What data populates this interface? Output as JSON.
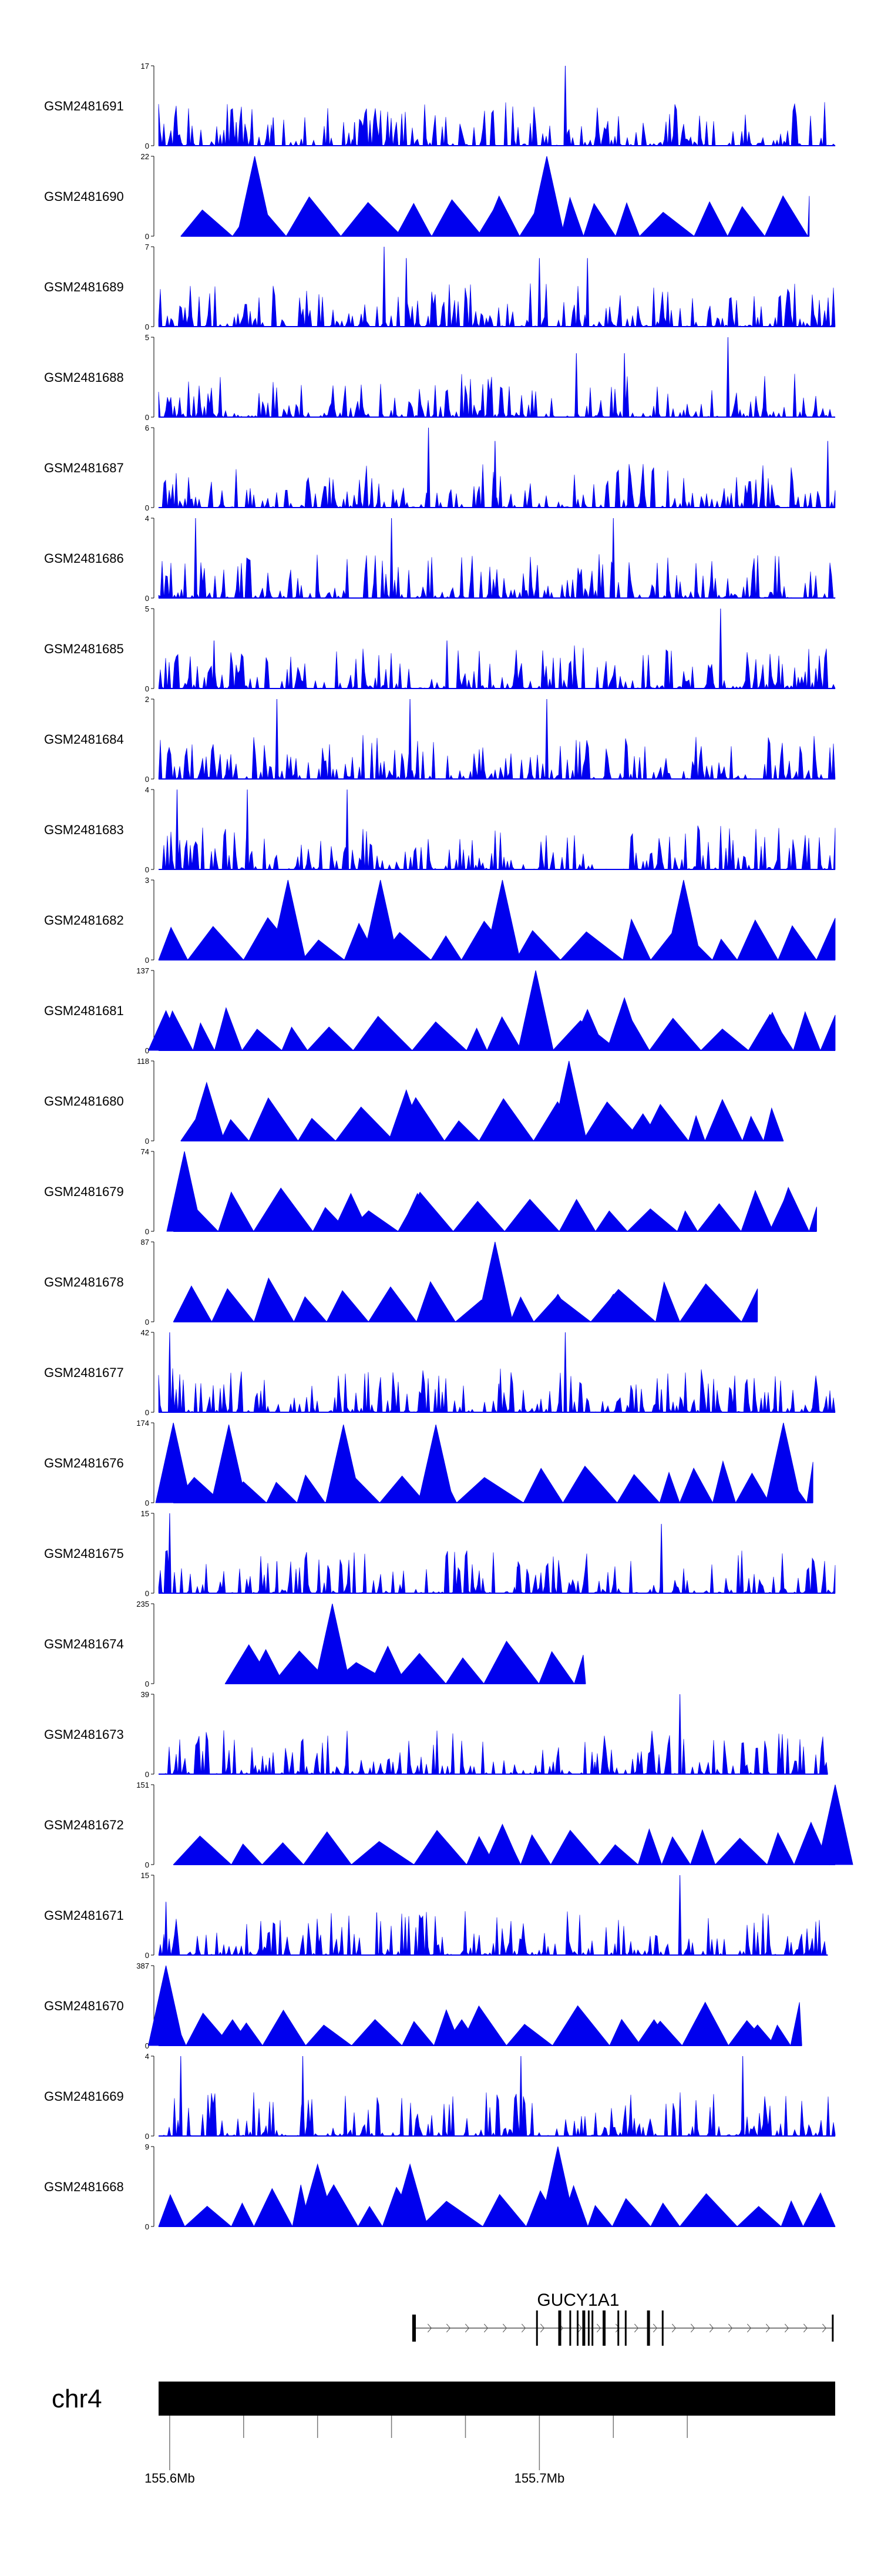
{
  "colors": {
    "signal": "#0000ee",
    "axis": "#000000",
    "label": "#000000",
    "gene": "#000000",
    "chrom": "#000000"
  },
  "chart_data": {
    "type": "area",
    "description_free": true,
    "region": {
      "chromosome": "chr4",
      "start_mb": 155.597,
      "end_mb": 155.78
    },
    "axis_ticks": [
      {
        "value": 155.6,
        "label": "155.6Mb"
      },
      {
        "value": 155.62
      },
      {
        "value": 155.64
      },
      {
        "value": 155.66
      },
      {
        "value": 155.68
      },
      {
        "value": 155.7,
        "label": "155.7Mb"
      },
      {
        "value": 155.72
      },
      {
        "value": 155.74
      }
    ],
    "gene": {
      "name": "GUCY1A1",
      "start_mb": 155.666,
      "end_mb": 155.7795,
      "exons_mb": [
        155.666,
        155.6665,
        155.6995,
        155.7055,
        155.7085,
        155.7105,
        155.712,
        155.7135,
        155.7145,
        155.7175,
        155.7215,
        155.7235,
        155.7295,
        155.7335,
        155.7795
      ]
    },
    "tracks": [
      {
        "name": "GSM2481691",
        "ymax": 17,
        "style": "dense",
        "peaks": [
          [
            155.707,
            17
          ],
          [
            155.628,
            6
          ],
          [
            155.618,
            5
          ],
          [
            155.65,
            5
          ]
        ],
        "extent": [
          155.597,
          155.78
        ]
      },
      {
        "name": "GSM2481690",
        "ymax": 22,
        "style": "tri",
        "peaks": [
          [
            155.623,
            22
          ],
          [
            155.702,
            22
          ],
          [
            155.666,
            9
          ],
          [
            155.688,
            8
          ]
        ],
        "extent": [
          155.603,
          155.773
        ]
      },
      {
        "name": "GSM2481689",
        "ymax": 7,
        "style": "dense",
        "peaks": [
          [
            155.658,
            7
          ],
          [
            155.664,
            6
          ],
          [
            155.713,
            6
          ],
          [
            155.7,
            6
          ]
        ],
        "extent": [
          155.597,
          155.78
        ]
      },
      {
        "name": "GSM2481688",
        "ymax": 5,
        "style": "dense",
        "peaks": [
          [
            155.751,
            5
          ],
          [
            155.71,
            4
          ],
          [
            155.723,
            4
          ]
        ],
        "extent": [
          155.597,
          155.78
        ]
      },
      {
        "name": "GSM2481687",
        "ymax": 6,
        "style": "dense",
        "peaks": [
          [
            155.67,
            6
          ],
          [
            155.688,
            5
          ],
          [
            155.778,
            5
          ]
        ],
        "extent": [
          155.597,
          155.78
        ]
      },
      {
        "name": "GSM2481686",
        "ymax": 4,
        "style": "dense",
        "peaks": [
          [
            155.607,
            4
          ],
          [
            155.66,
            4
          ],
          [
            155.72,
            4
          ]
        ],
        "extent": [
          155.597,
          155.78
        ]
      },
      {
        "name": "GSM2481685",
        "ymax": 5,
        "style": "dense",
        "peaks": [
          [
            155.749,
            5
          ],
          [
            155.612,
            3
          ],
          [
            155.675,
            3
          ]
        ],
        "extent": [
          155.597,
          155.78
        ]
      },
      {
        "name": "GSM2481684",
        "ymax": 2,
        "style": "dense",
        "peaks": [
          [
            155.629,
            2
          ],
          [
            155.665,
            2
          ],
          [
            155.702,
            2
          ]
        ],
        "extent": [
          155.597,
          155.78
        ]
      },
      {
        "name": "GSM2481683",
        "ymax": 4,
        "style": "dense",
        "peaks": [
          [
            155.602,
            4
          ],
          [
            155.621,
            4
          ],
          [
            155.648,
            4
          ]
        ],
        "extent": [
          155.597,
          155.78
        ]
      },
      {
        "name": "GSM2481682",
        "ymax": 3,
        "style": "tri",
        "peaks": [
          [
            155.632,
            3
          ],
          [
            155.657,
            3
          ],
          [
            155.69,
            3
          ],
          [
            155.739,
            3
          ]
        ],
        "extent": [
          155.597,
          155.78
        ]
      },
      {
        "name": "GSM2481681",
        "ymax": 137,
        "style": "tri",
        "peaks": [
          [
            155.599,
            68
          ],
          [
            155.65,
            0
          ],
          [
            155.699,
            137
          ],
          [
            155.713,
            70
          ],
          [
            155.723,
            90
          ],
          [
            155.763,
            65
          ]
        ],
        "extent": [
          155.597,
          155.78
        ]
      },
      {
        "name": "GSM2481680",
        "ymax": 118,
        "style": "tri",
        "peaks": [
          [
            155.61,
            86
          ],
          [
            155.664,
            75
          ],
          [
            155.708,
            118
          ],
          [
            155.728,
            40
          ]
        ],
        "extent": [
          155.603,
          155.766
        ]
      },
      {
        "name": "GSM2481679",
        "ymax": 74,
        "style": "tri",
        "peaks": [
          [
            155.604,
            74
          ],
          [
            155.649,
            35
          ],
          [
            155.667,
            35
          ],
          [
            155.767,
            35
          ]
        ],
        "extent": [
          155.601,
          155.775
        ]
      },
      {
        "name": "GSM2481678",
        "ymax": 87,
        "style": "tri",
        "peaks": [
          [
            155.688,
            87
          ],
          [
            155.705,
            30
          ],
          [
            155.72,
            30
          ]
        ],
        "extent": [
          155.601,
          155.759
        ]
      },
      {
        "name": "GSM2481677",
        "ymax": 42,
        "style": "dense",
        "peaks": [
          [
            155.6,
            42
          ],
          [
            155.707,
            42
          ],
          [
            155.689,
            15
          ],
          [
            155.733,
            12
          ]
        ],
        "extent": [
          155.597,
          155.78
        ]
      },
      {
        "name": "GSM2481676",
        "ymax": 174,
        "style": "tri",
        "peaks": [
          [
            155.601,
            174
          ],
          [
            155.616,
            170
          ],
          [
            155.647,
            170
          ],
          [
            155.672,
            170
          ],
          [
            155.766,
            174
          ]
        ],
        "extent": [
          155.601,
          155.774
        ]
      },
      {
        "name": "GSM2481675",
        "ymax": 15,
        "style": "dense",
        "peaks": [
          [
            155.6,
            15
          ],
          [
            155.733,
            13
          ],
          [
            155.629,
            6
          ],
          [
            155.694,
            5
          ]
        ],
        "extent": [
          155.597,
          155.78
        ]
      },
      {
        "name": "GSM2481674",
        "ymax": 235,
        "style": "tri",
        "peaks": [
          [
            155.626,
            100
          ],
          [
            155.644,
            235
          ],
          [
            155.659,
            110
          ]
        ],
        "extent": [
          155.615,
          155.7125
        ]
      },
      {
        "name": "GSM2481673",
        "ymax": 39,
        "style": "dense",
        "peaks": [
          [
            155.738,
            39
          ],
          [
            155.627,
            8
          ],
          [
            155.715,
            6
          ]
        ],
        "extent": [
          155.597,
          155.778
        ]
      },
      {
        "name": "GSM2481672",
        "ymax": 151,
        "style": "tri",
        "peaks": [
          [
            155.69,
            76
          ],
          [
            155.78,
            151
          ],
          [
            155.611,
            34
          ]
        ],
        "extent": [
          155.601,
          155.78
        ]
      },
      {
        "name": "GSM2481671",
        "ymax": 15,
        "style": "dense",
        "peaks": [
          [
            155.738,
            15
          ],
          [
            155.599,
            10
          ],
          [
            155.656,
            8
          ]
        ],
        "extent": [
          155.597,
          155.778
        ]
      },
      {
        "name": "GSM2481670",
        "ymax": 387,
        "style": "tri",
        "peaks": [
          [
            155.599,
            387
          ],
          [
            155.617,
            125
          ],
          [
            155.679,
            125
          ],
          [
            155.731,
            125
          ],
          [
            155.759,
            100
          ]
        ],
        "extent": [
          155.597,
          155.771
        ]
      },
      {
        "name": "GSM2481669",
        "ymax": 4,
        "style": "dense",
        "peaks": [
          [
            155.603,
            4
          ],
          [
            155.636,
            4
          ],
          [
            155.695,
            4
          ],
          [
            155.755,
            4
          ]
        ],
        "extent": [
          155.597,
          155.78
        ]
      },
      {
        "name": "GSM2481668",
        "ymax": 9,
        "style": "tri",
        "peaks": [
          [
            155.705,
            9
          ],
          [
            155.64,
            7
          ],
          [
            155.665,
            7
          ]
        ],
        "extent": [
          155.597,
          155.78
        ]
      }
    ]
  }
}
